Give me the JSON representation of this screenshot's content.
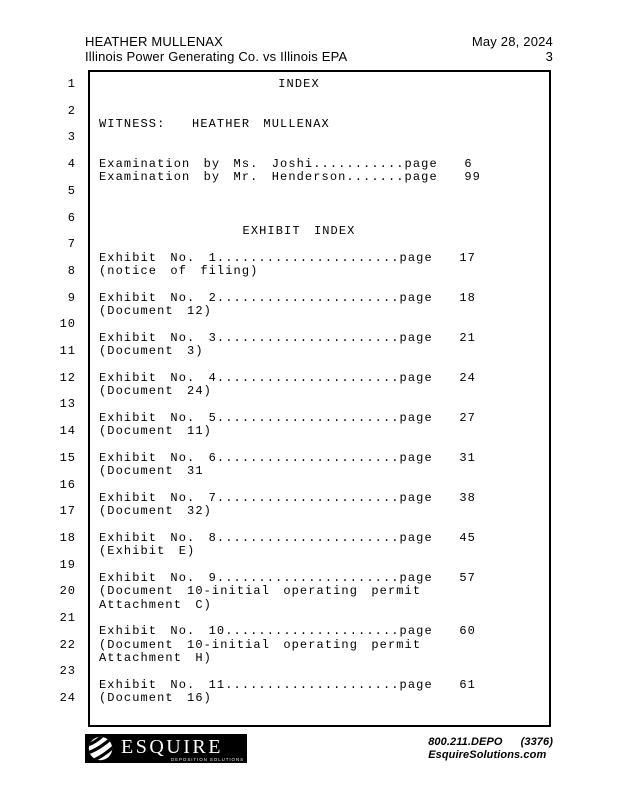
{
  "header": {
    "witness_name": "HEATHER MULLENAX",
    "case_title": "Illinois Power Generating Co. vs Illinois EPA",
    "date": "May 28, 2024",
    "page_number": "3"
  },
  "transcript": {
    "line_numbers": [
      "1",
      "2",
      "3",
      "4",
      "5",
      "6",
      "7",
      "8",
      "9",
      "10",
      "11",
      "12",
      "13",
      "14",
      "15",
      "16",
      "17",
      "18",
      "19",
      "20",
      "21",
      "22",
      "23",
      "24"
    ],
    "lines": [
      {
        "row": 0,
        "name": "index-title",
        "align": "center",
        "text": "INDEX"
      },
      {
        "row": 3,
        "name": "witness-line",
        "text": "WITNESS:  HEATHER MULLENAX"
      },
      {
        "row": 6,
        "name": "examination-entry",
        "text": "Examination by Ms. Joshi...........page  6"
      },
      {
        "row": 7,
        "name": "examination-entry",
        "text": "Examination by Mr. Henderson.......page  99"
      },
      {
        "row": 11,
        "name": "exhibit-index-title",
        "align": "center",
        "text": "EXHIBIT INDEX"
      },
      {
        "row": 13,
        "name": "exhibit-entry",
        "text": "Exhibit No. 1......................page  17"
      },
      {
        "row": 14,
        "name": "exhibit-description",
        "text": "(notice of filing)"
      },
      {
        "row": 16,
        "name": "exhibit-entry",
        "text": "Exhibit No. 2......................page  18"
      },
      {
        "row": 17,
        "name": "exhibit-description",
        "text": "(Document 12)"
      },
      {
        "row": 19,
        "name": "exhibit-entry",
        "text": "Exhibit No. 3......................page  21"
      },
      {
        "row": 20,
        "name": "exhibit-description",
        "text": "(Document 3)"
      },
      {
        "row": 22,
        "name": "exhibit-entry",
        "text": "Exhibit No. 4......................page  24"
      },
      {
        "row": 23,
        "name": "exhibit-description",
        "text": "(Document 24)"
      },
      {
        "row": 25,
        "name": "exhibit-entry",
        "text": "Exhibit No. 5......................page  27"
      },
      {
        "row": 26,
        "name": "exhibit-description",
        "text": "(Document 11)"
      },
      {
        "row": 28,
        "name": "exhibit-entry",
        "text": "Exhibit No. 6......................page  31"
      },
      {
        "row": 29,
        "name": "exhibit-description",
        "text": "(Document 31"
      },
      {
        "row": 31,
        "name": "exhibit-entry",
        "text": "Exhibit No. 7......................page  38"
      },
      {
        "row": 32,
        "name": "exhibit-description",
        "text": "(Document 32)"
      },
      {
        "row": 34,
        "name": "exhibit-entry",
        "text": "Exhibit No. 8......................page  45"
      },
      {
        "row": 35,
        "name": "exhibit-description",
        "text": "(Exhibit E)"
      },
      {
        "row": 37,
        "name": "exhibit-entry",
        "text": "Exhibit No. 9......................page  57"
      },
      {
        "row": 38,
        "name": "exhibit-description",
        "text": "(Document 10-initial operating permit"
      },
      {
        "row": 39,
        "name": "exhibit-description",
        "text": "Attachment C)"
      },
      {
        "row": 41,
        "name": "exhibit-entry",
        "text": "Exhibit No. 10.....................page  60"
      },
      {
        "row": 42,
        "name": "exhibit-description",
        "text": "(Document 10-initial operating permit"
      },
      {
        "row": 43,
        "name": "exhibit-description",
        "text": "Attachment H)"
      },
      {
        "row": 45,
        "name": "exhibit-entry",
        "text": "Exhibit No. 11.....................page  61"
      },
      {
        "row": 46,
        "name": "exhibit-description",
        "text": "(Document 16)"
      }
    ]
  },
  "footer": {
    "logo_text": "ESQUIRE",
    "logo_subtext": "DEPOSITION SOLUTIONS",
    "phone": "800.211.DEPO",
    "phone_suffix": "(3376)",
    "website": "EsquireSolutions.com"
  },
  "colors": {
    "text": "#000000",
    "page_background": "#ffffff",
    "logo_background": "#000000",
    "logo_foreground": "#ffffff"
  }
}
